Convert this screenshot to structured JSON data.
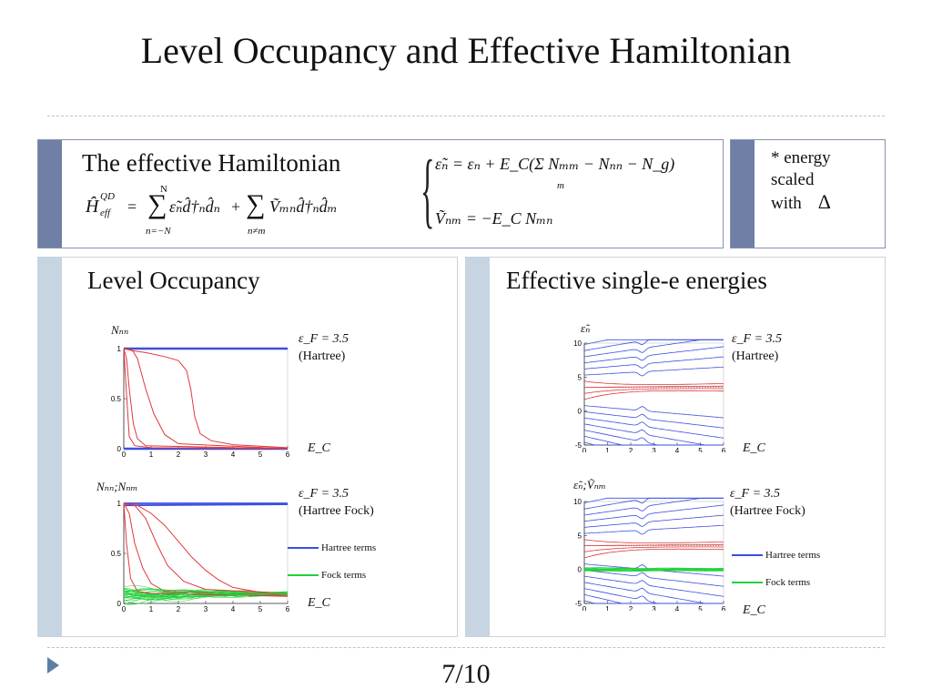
{
  "slide": {
    "title": "Level Occupancy and Effective Hamiltonian",
    "page_number": "7/10"
  },
  "hamiltonian_box": {
    "heading": "The effective Hamiltonian",
    "hamiltonian_lhs": "Ĥ",
    "hamiltonian_sup": "QD",
    "hamiltonian_sub": "eff",
    "sum1_upper": "N",
    "sum1_lower": "n=−N",
    "sum2_lower": "n≠m",
    "term1": "ε̃ₙd̂†ₙd̂ₙ",
    "term2": "Ṽₘₙd̂†ₙd̂ₘ",
    "epsilon_def": "ε̃ₙ = εₙ + E_C(Σ Nₘₘ − Nₙₙ − N_g)",
    "epsilon_sum_index": "m",
    "v_def": "Ṽₙₘ = −E_C Nₘₙ"
  },
  "note_box": {
    "line1": "* energy",
    "line2": "scaled",
    "line3": "with",
    "symbol": "Δ"
  },
  "left_panel": {
    "heading": "Level Occupancy",
    "top_plot": {
      "y_label": "Nₙₙ",
      "x_label": "E_C",
      "annotation_eps": "ε_F = 3.5",
      "annotation_method": "(Hartree)"
    },
    "bottom_plot": {
      "y_label": "Nₙₙ;Nₙₘ",
      "x_label": "E_C",
      "annotation_eps": "ε_F = 3.5",
      "annotation_method": "(Hartree Fock)",
      "legend_hartree": "Hartree terms",
      "legend_fock": "Fock terms"
    }
  },
  "right_panel": {
    "heading": "Effective single-e energies",
    "top_plot": {
      "y_label": "ε̃ₙ",
      "x_label": "E_C",
      "annotation_eps": "ε_F = 3.5",
      "annotation_method": "(Hartree)"
    },
    "bottom_plot": {
      "y_label": "ε̃ₙ;Ṽₙₘ",
      "x_label": "E_C",
      "annotation_eps": "ε_F = 3.5",
      "annotation_method": "(Hartree Fock)",
      "legend_hartree": "Hartree terms",
      "legend_fock": "Fock terms"
    }
  },
  "colors": {
    "hartree_blue": "#3b4fe0",
    "hartree_red": "#e0383c",
    "fock_green": "#22d23a",
    "occupied_blue": "#1f2fd8",
    "box_bar": "#6f7fa6",
    "panel_bar": "#c7d4e1"
  },
  "chart_data": [
    {
      "type": "line",
      "id": "occupancy_hartree",
      "xlabel": "E_C",
      "ylabel": "Nnn",
      "xlim": [
        0,
        6
      ],
      "ylim": [
        0,
        1
      ],
      "x_ticks": [
        0,
        1,
        2,
        3,
        4,
        5,
        6
      ],
      "y_ticks": [
        0,
        0.5,
        1
      ],
      "series": [
        {
          "color": "blue",
          "x": [
            0,
            6
          ],
          "y": [
            1,
            1
          ]
        },
        {
          "color": "blue",
          "x": [
            0,
            6
          ],
          "y": [
            0,
            0
          ]
        },
        {
          "color": "red",
          "x": [
            0,
            0.1,
            0.2,
            0.4,
            1,
            6
          ],
          "y": [
            1,
            0.55,
            0.12,
            0.03,
            0.01,
            0
          ]
        },
        {
          "color": "red",
          "x": [
            0,
            0.1,
            0.2,
            0.35,
            0.5,
            0.8,
            6
          ],
          "y": [
            1,
            0.9,
            0.6,
            0.25,
            0.1,
            0.03,
            0
          ]
        },
        {
          "color": "red",
          "x": [
            0,
            0.3,
            0.5,
            0.8,
            1.1,
            1.5,
            2,
            6
          ],
          "y": [
            1,
            0.99,
            0.9,
            0.6,
            0.35,
            0.14,
            0.05,
            0
          ]
        },
        {
          "color": "red",
          "x": [
            0,
            0.3,
            0.8,
            1.5,
            2,
            2.3,
            2.45,
            2.6,
            2.8,
            3.2,
            4,
            6
          ],
          "y": [
            1,
            0.98,
            0.96,
            0.92,
            0.88,
            0.78,
            0.6,
            0.32,
            0.15,
            0.08,
            0.04,
            0.01
          ]
        }
      ]
    },
    {
      "type": "line",
      "id": "occupancy_hartree_fock",
      "xlabel": "E_C",
      "ylabel": "Nnn;Nnm",
      "xlim": [
        0,
        6
      ],
      "ylim": [
        0,
        1
      ],
      "x_ticks": [
        0,
        1,
        2,
        3,
        4,
        5,
        6
      ],
      "y_ticks": [
        0,
        0.5,
        1
      ],
      "series": [
        {
          "name": "Hartree terms",
          "color": "blue",
          "x": [
            0,
            6
          ],
          "y": [
            1,
            1
          ]
        },
        {
          "color": "blue",
          "x": [
            0,
            6
          ],
          "y": [
            0.98,
            0.99
          ]
        },
        {
          "color": "red",
          "x": [
            0,
            0.1,
            0.25,
            0.5,
            1,
            6
          ],
          "y": [
            1,
            0.6,
            0.25,
            0.12,
            0.1,
            0.07
          ]
        },
        {
          "color": "red",
          "x": [
            0,
            0.2,
            0.4,
            0.7,
            1,
            1.5,
            6
          ],
          "y": [
            1,
            0.9,
            0.6,
            0.35,
            0.2,
            0.12,
            0.08
          ]
        },
        {
          "color": "red",
          "x": [
            0,
            0.4,
            0.8,
            1.2,
            1.6,
            2.2,
            3,
            6
          ],
          "y": [
            1,
            0.98,
            0.85,
            0.6,
            0.38,
            0.22,
            0.14,
            0.1
          ]
        },
        {
          "color": "red",
          "x": [
            0,
            0.5,
            1,
            1.5,
            2,
            2.5,
            3,
            3.5,
            4,
            5,
            6
          ],
          "y": [
            1,
            0.98,
            0.9,
            0.78,
            0.62,
            0.46,
            0.33,
            0.23,
            0.16,
            0.11,
            0.1
          ]
        },
        {
          "name": "Fock terms",
          "color": "green",
          "x": [
            0,
            1,
            2,
            3,
            4,
            5,
            6
          ],
          "y": [
            0.12,
            0.14,
            0.13,
            0.12,
            0.11,
            0.1,
            0.1
          ]
        },
        {
          "color": "green",
          "x": [
            0,
            1,
            2,
            3,
            4,
            5,
            6
          ],
          "y": [
            0.06,
            0.04,
            0.06,
            0.07,
            0.08,
            0.09,
            0.1
          ]
        },
        {
          "color": "green",
          "x": [
            0,
            1,
            2,
            3,
            4,
            5,
            6
          ],
          "y": [
            0.1,
            0.08,
            0.09,
            0.1,
            0.1,
            0.1,
            0.1
          ]
        }
      ]
    },
    {
      "type": "line",
      "id": "energies_hartree",
      "xlabel": "E_C",
      "ylabel": "ε̃n",
      "xlim": [
        0,
        6
      ],
      "ylim": [
        -5,
        10
      ],
      "x_ticks": [
        0,
        1,
        2,
        3,
        4,
        5,
        6
      ],
      "y_ticks": [
        -5,
        0,
        5,
        10
      ],
      "reference_line_y": 3.5,
      "series_note": "nine blue curves above and nine below, four red curves crossing through the Fermi level"
    },
    {
      "type": "line",
      "id": "energies_hartree_fock",
      "xlabel": "E_C",
      "ylabel": "ε̃n;Ṽnm",
      "xlim": [
        0,
        6
      ],
      "ylim": [
        -5,
        10
      ],
      "x_ticks": [
        0,
        1,
        2,
        3,
        4,
        5,
        6
      ],
      "y_ticks": [
        -5,
        0,
        5,
        10
      ],
      "reference_line_y": 3.5,
      "series_note": "blue and red single-particle levels plus green Fock terms clustered near zero"
    }
  ]
}
